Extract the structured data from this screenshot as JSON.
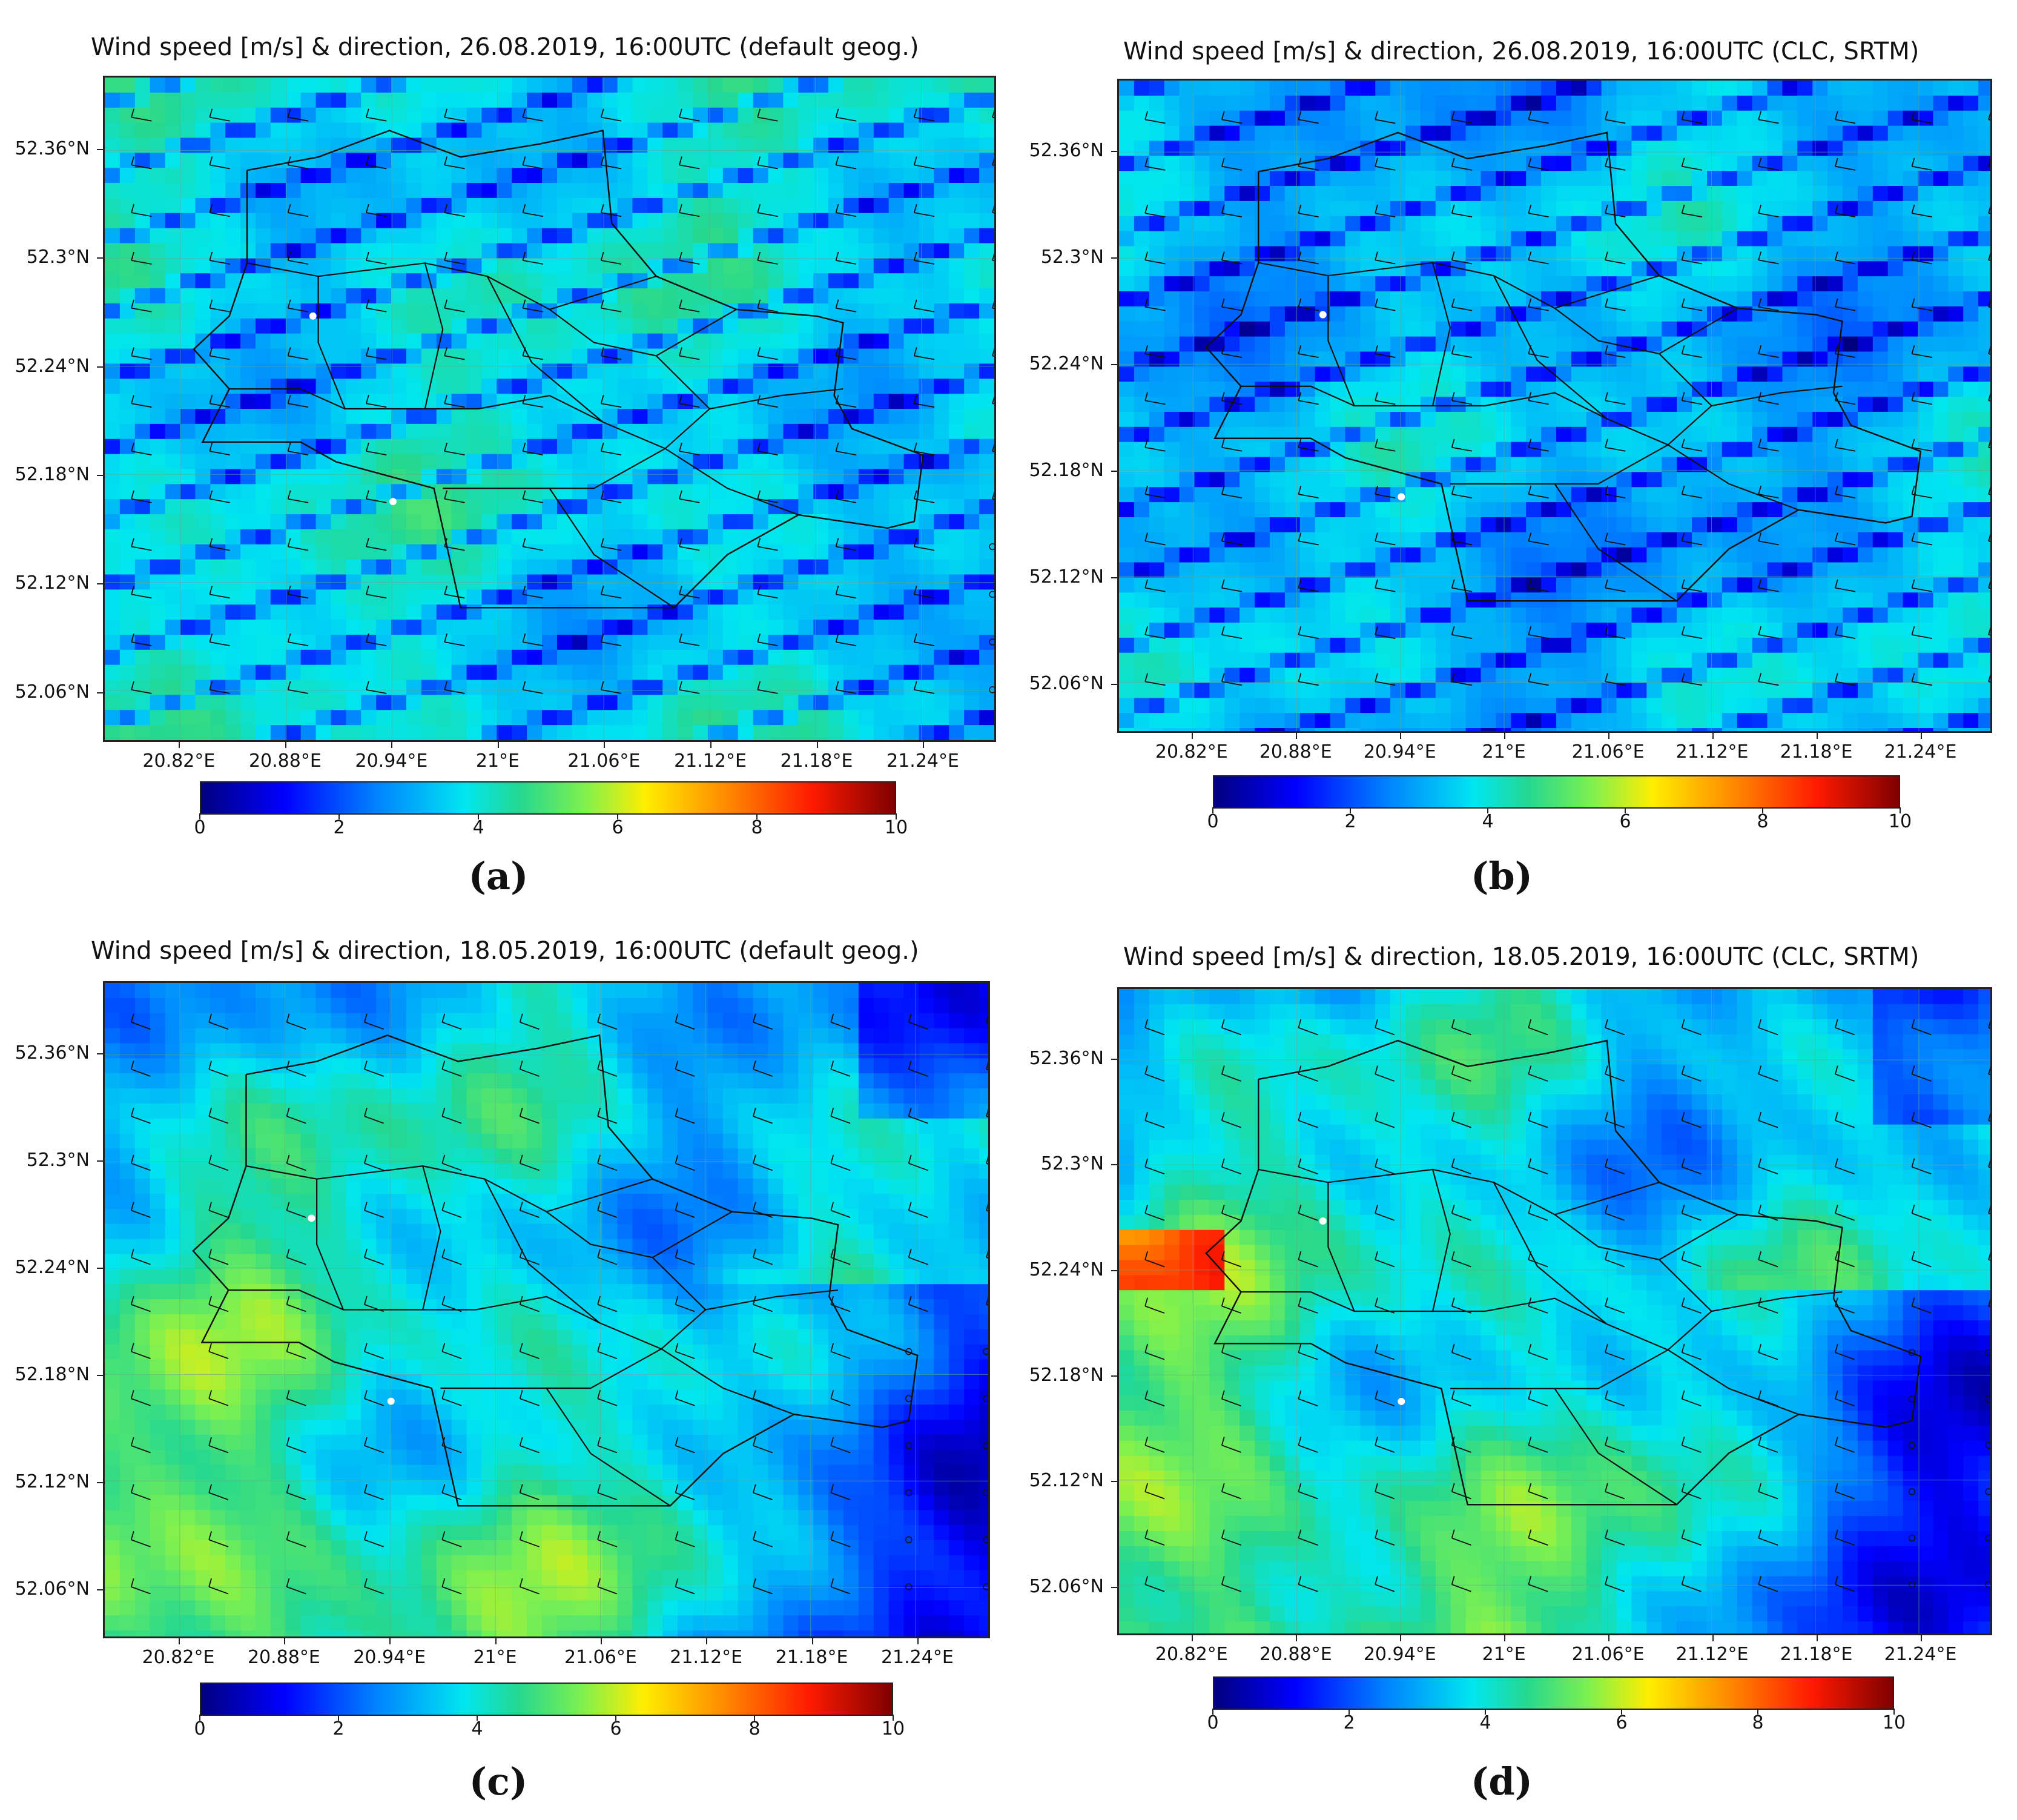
{
  "panels": [
    {
      "id": "a",
      "title": "Wind speed [m/s] & direction, 26.08.2019, 16:00UTC (default geog.)",
      "tag": "(a)",
      "regime": "streaky",
      "calm_mask": "east"
    },
    {
      "id": "b",
      "title": "Wind speed [m/s] & direction, 26.08.2019, 16:00UTC (CLC, SRTM)",
      "tag": "(b)",
      "regime": "streaky",
      "calm_mask": "scattered"
    },
    {
      "id": "c",
      "title": "Wind speed [m/s] & direction, 18.05.2019, 16:00UTC (default geog.)",
      "tag": "(c)",
      "regime": "gradient",
      "calm_mask": "southeast"
    },
    {
      "id": "d",
      "title": "Wind speed [m/s] & direction, 18.05.2019, 16:00UTC (CLC, SRTM)",
      "tag": "(d)",
      "regime": "gradient",
      "calm_mask": "southeast"
    }
  ],
  "latitude_ticks": [
    "52.36°N",
    "52.3°N",
    "52.24°N",
    "52.18°N",
    "52.12°N",
    "52.06°N"
  ],
  "longitude_ticks": [
    "20.82°E",
    "20.88°E",
    "20.94°E",
    "21°E",
    "21.06°E",
    "21.12°E",
    "21.18°E",
    "21.24°E"
  ],
  "colorbar": {
    "ticks": [
      "0",
      "2",
      "4",
      "6",
      "8",
      "10"
    ],
    "min": 0,
    "max": 10,
    "colormap": "jet",
    "units": "m/s"
  },
  "stations": [
    "white-dot-northwest",
    "white-dot-southwest"
  ]
}
